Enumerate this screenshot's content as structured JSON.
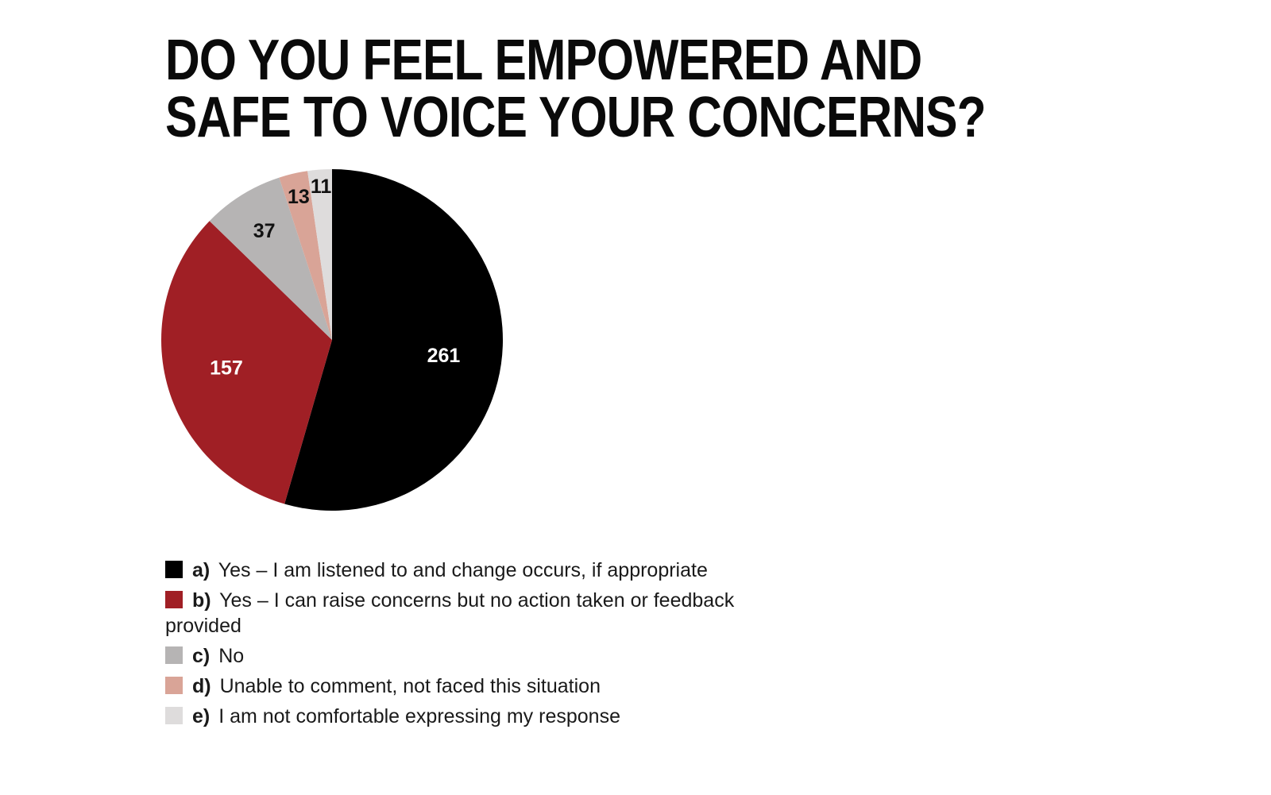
{
  "chart_data": {
    "type": "pie",
    "title_lines": [
      "DO YOU FEEL EMPOWERED AND",
      "SAFE TO VOICE YOUR CONCERNS?"
    ],
    "slices": [
      {
        "letter": "a)",
        "label": "Yes – I am listened to and change occurs, if appropriate",
        "value": 261,
        "color": "#000000",
        "label_color": "#ffffff"
      },
      {
        "letter": "b)",
        "label": "Yes – I can raise concerns but no action taken or feedback provided",
        "value": 157,
        "color": "#a01f25",
        "label_color": "#ffffff"
      },
      {
        "letter": "c)",
        "label": "No",
        "value": 37,
        "color": "#b6b4b4",
        "label_color": "#111111"
      },
      {
        "letter": "d)",
        "label": "Unable to comment, not faced this situation",
        "value": 13,
        "color": "#d9a497",
        "label_color": "#111111"
      },
      {
        "letter": "e)",
        "label": "I am not comfortable expressing my response",
        "value": 11,
        "color": "#dedcdc",
        "label_color": "#111111"
      }
    ],
    "start_angle": "12 o'clock",
    "direction": "clockwise",
    "legend_position": "bottom-left"
  }
}
